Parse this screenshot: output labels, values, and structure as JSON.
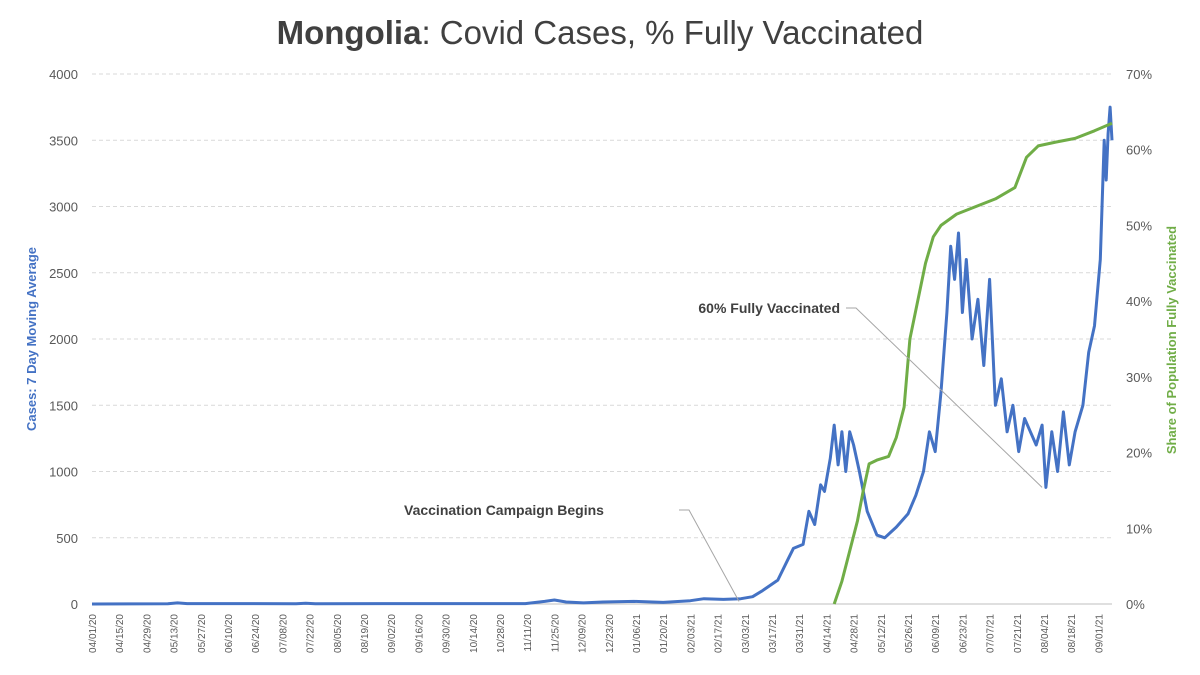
{
  "title": {
    "bold": "Mongolia",
    "rest": ": Covid Cases, % Fully Vaccinated"
  },
  "chart_data": {
    "type": "line",
    "title": "Mongolia: Covid Cases, % Fully Vaccinated",
    "ylabel": "Cases: 7 Day Moving Average",
    "y2label": "Share of Population Fully Vaccinated",
    "ylim": [
      0,
      4000
    ],
    "y2lim": [
      0,
      70
    ],
    "xlim": [
      "2020-04-01",
      "2021-09-08"
    ],
    "y_ticks": [
      "0",
      "500",
      "1000",
      "1500",
      "2000",
      "2500",
      "3000",
      "3500",
      "4000"
    ],
    "y2_ticks": [
      "0%",
      "10%",
      "20%",
      "30%",
      "40%",
      "50%",
      "60%",
      "70%"
    ],
    "x_ticks": [
      {
        "date": "2020-04-01",
        "label": "04/01/20"
      },
      {
        "date": "2020-04-15",
        "label": "04/15/20"
      },
      {
        "date": "2020-04-29",
        "label": "04/29/20"
      },
      {
        "date": "2020-05-13",
        "label": "05/13/20"
      },
      {
        "date": "2020-05-27",
        "label": "05/27/20"
      },
      {
        "date": "2020-06-10",
        "label": "06/10/20"
      },
      {
        "date": "2020-06-24",
        "label": "06/24/20"
      },
      {
        "date": "2020-07-08",
        "label": "07/08/20"
      },
      {
        "date": "2020-07-22",
        "label": "07/22/20"
      },
      {
        "date": "2020-08-05",
        "label": "08/05/20"
      },
      {
        "date": "2020-08-19",
        "label": "08/19/20"
      },
      {
        "date": "2020-09-02",
        "label": "09/02/20"
      },
      {
        "date": "2020-09-16",
        "label": "09/16/20"
      },
      {
        "date": "2020-09-30",
        "label": "09/30/20"
      },
      {
        "date": "2020-10-14",
        "label": "10/14/20"
      },
      {
        "date": "2020-10-28",
        "label": "10/28/20"
      },
      {
        "date": "2020-11-11",
        "label": "11/11/20"
      },
      {
        "date": "2020-11-25",
        "label": "11/25/20"
      },
      {
        "date": "2020-12-09",
        "label": "12/09/20"
      },
      {
        "date": "2020-12-23",
        "label": "12/23/20"
      },
      {
        "date": "2021-01-06",
        "label": "01/06/21"
      },
      {
        "date": "2021-01-20",
        "label": "01/20/21"
      },
      {
        "date": "2021-02-03",
        "label": "02/03/21"
      },
      {
        "date": "2021-02-17",
        "label": "02/17/21"
      },
      {
        "date": "2021-03-03",
        "label": "03/03/21"
      },
      {
        "date": "2021-03-17",
        "label": "03/17/21"
      },
      {
        "date": "2021-03-31",
        "label": "03/31/21"
      },
      {
        "date": "2021-04-14",
        "label": "04/14/21"
      },
      {
        "date": "2021-04-28",
        "label": "04/28/21"
      },
      {
        "date": "2021-05-12",
        "label": "05/12/21"
      },
      {
        "date": "2021-05-26",
        "label": "05/26/21"
      },
      {
        "date": "2021-06-09",
        "label": "06/09/21"
      },
      {
        "date": "2021-06-23",
        "label": "06/23/21"
      },
      {
        "date": "2021-07-07",
        "label": "07/07/21"
      },
      {
        "date": "2021-07-21",
        "label": "07/21/21"
      },
      {
        "date": "2021-08-04",
        "label": "08/04/21"
      },
      {
        "date": "2021-08-18",
        "label": "08/18/21"
      },
      {
        "date": "2021-09-01",
        "label": "09/01/21"
      }
    ],
    "grid": true,
    "series": [
      {
        "axis": "left",
        "color": "#4472C4",
        "points": [
          [
            "2020-04-01",
            0
          ],
          [
            "2020-05-10",
            2
          ],
          [
            "2020-05-15",
            8
          ],
          [
            "2020-05-20",
            3
          ],
          [
            "2020-07-15",
            2
          ],
          [
            "2020-07-20",
            6
          ],
          [
            "2020-07-25",
            2
          ],
          [
            "2020-11-10",
            3
          ],
          [
            "2020-11-20",
            20
          ],
          [
            "2020-11-25",
            30
          ],
          [
            "2020-12-01",
            15
          ],
          [
            "2020-12-10",
            8
          ],
          [
            "2020-12-20",
            15
          ],
          [
            "2021-01-05",
            20
          ],
          [
            "2021-01-20",
            12
          ],
          [
            "2021-02-03",
            25
          ],
          [
            "2021-02-10",
            40
          ],
          [
            "2021-02-20",
            35
          ],
          [
            "2021-03-01",
            40
          ],
          [
            "2021-03-07",
            55
          ],
          [
            "2021-03-12",
            100
          ],
          [
            "2021-03-17",
            150
          ],
          [
            "2021-03-20",
            180
          ],
          [
            "2021-03-25",
            330
          ],
          [
            "2021-03-28",
            420
          ],
          [
            "2021-04-02",
            450
          ],
          [
            "2021-04-05",
            700
          ],
          [
            "2021-04-08",
            600
          ],
          [
            "2021-04-11",
            900
          ],
          [
            "2021-04-13",
            850
          ],
          [
            "2021-04-16",
            1100
          ],
          [
            "2021-04-18",
            1350
          ],
          [
            "2021-04-20",
            1050
          ],
          [
            "2021-04-22",
            1300
          ],
          [
            "2021-04-24",
            1000
          ],
          [
            "2021-04-26",
            1300
          ],
          [
            "2021-04-28",
            1200
          ],
          [
            "2021-05-01",
            1000
          ],
          [
            "2021-05-05",
            700
          ],
          [
            "2021-05-10",
            520
          ],
          [
            "2021-05-14",
            500
          ],
          [
            "2021-05-20",
            580
          ],
          [
            "2021-05-26",
            680
          ],
          [
            "2021-05-30",
            820
          ],
          [
            "2021-06-03",
            1000
          ],
          [
            "2021-06-06",
            1300
          ],
          [
            "2021-06-09",
            1150
          ],
          [
            "2021-06-12",
            1600
          ],
          [
            "2021-06-15",
            2200
          ],
          [
            "2021-06-17",
            2700
          ],
          [
            "2021-06-19",
            2450
          ],
          [
            "2021-06-21",
            2800
          ],
          [
            "2021-06-23",
            2200
          ],
          [
            "2021-06-25",
            2600
          ],
          [
            "2021-06-28",
            2000
          ],
          [
            "2021-07-01",
            2300
          ],
          [
            "2021-07-04",
            1800
          ],
          [
            "2021-07-07",
            2450
          ],
          [
            "2021-07-10",
            1500
          ],
          [
            "2021-07-13",
            1700
          ],
          [
            "2021-07-16",
            1300
          ],
          [
            "2021-07-19",
            1500
          ],
          [
            "2021-07-22",
            1150
          ],
          [
            "2021-07-25",
            1400
          ],
          [
            "2021-07-28",
            1300
          ],
          [
            "2021-07-31",
            1200
          ],
          [
            "2021-08-03",
            1350
          ],
          [
            "2021-08-05",
            880
          ],
          [
            "2021-08-08",
            1300
          ],
          [
            "2021-08-11",
            1000
          ],
          [
            "2021-08-14",
            1450
          ],
          [
            "2021-08-17",
            1050
          ],
          [
            "2021-08-20",
            1300
          ],
          [
            "2021-08-24",
            1500
          ],
          [
            "2021-08-27",
            1900
          ],
          [
            "2021-08-30",
            2100
          ],
          [
            "2021-09-02",
            2600
          ],
          [
            "2021-09-04",
            3500
          ],
          [
            "2021-09-05",
            3200
          ],
          [
            "2021-09-06",
            3550
          ],
          [
            "2021-09-07",
            3750
          ],
          [
            "2021-09-08",
            3500
          ]
        ]
      },
      {
        "axis": "right",
        "color": "#70AD47",
        "points": [
          [
            "2021-04-18",
            0
          ],
          [
            "2021-04-22",
            3
          ],
          [
            "2021-04-26",
            7
          ],
          [
            "2021-04-30",
            11
          ],
          [
            "2021-05-03",
            15
          ],
          [
            "2021-05-06",
            18.5
          ],
          [
            "2021-05-10",
            19
          ],
          [
            "2021-05-16",
            19.5
          ],
          [
            "2021-05-20",
            22
          ],
          [
            "2021-05-24",
            26
          ],
          [
            "2021-05-27",
            35
          ],
          [
            "2021-05-31",
            40
          ],
          [
            "2021-06-04",
            45
          ],
          [
            "2021-06-08",
            48.5
          ],
          [
            "2021-06-12",
            50
          ],
          [
            "2021-06-20",
            51.5
          ],
          [
            "2021-06-30",
            52.5
          ],
          [
            "2021-07-10",
            53.5
          ],
          [
            "2021-07-20",
            55
          ],
          [
            "2021-07-26",
            59
          ],
          [
            "2021-08-01",
            60.5
          ],
          [
            "2021-08-10",
            61
          ],
          [
            "2021-08-20",
            61.5
          ],
          [
            "2021-08-30",
            62.5
          ],
          [
            "2021-09-08",
            63.5
          ]
        ]
      }
    ],
    "annotations": [
      {
        "text": "Vaccination Campaign Begins",
        "date": "2021-02-28",
        "value": 20
      },
      {
        "text": "60% Fully Vaccinated",
        "date": "2021-08-03",
        "value": 880
      }
    ]
  }
}
